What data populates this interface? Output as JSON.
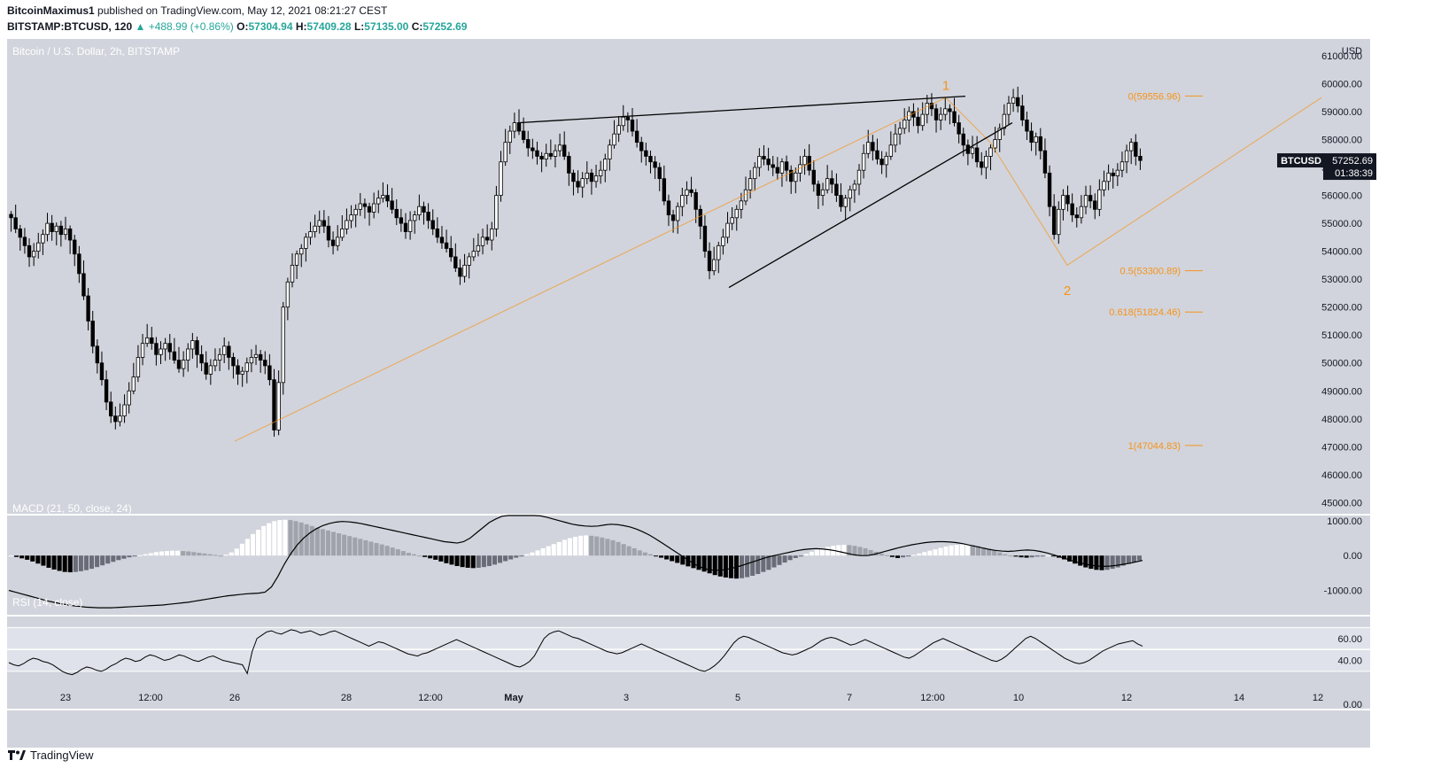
{
  "header": {
    "author": "BitcoinMaximus1",
    "published_text": "published on TradingView.com, May 12, 2021 08:21:27 CEST",
    "symbol": "BITSTAMP:BTCUSD, 120",
    "change": "+488.99 (+0.86%)",
    "open_label": "O:",
    "open": "57304.94",
    "high_label": "H:",
    "high": "57409.28",
    "low_label": "L:",
    "low": "57135.00",
    "close_label": "C:",
    "close": "57252.69"
  },
  "footer": {
    "brand": "TradingView"
  },
  "colors": {
    "panel_bg": "#d1d4dc",
    "candle": "#000000",
    "wave": "#f7931a",
    "annotation": "#f7931a",
    "price_tag_bg": "#131722"
  },
  "chart_data": [
    {
      "type": "candlestick",
      "title": "Bitcoin / U.S. Dollar, 2h, BITSTAMP",
      "currency_label": "USD",
      "ylim": [
        44600,
        61600
      ],
      "y_ticks": [
        "61000.00",
        "60000.00",
        "59000.00",
        "58000.00",
        "57000.00",
        "56000.00",
        "55000.00",
        "54000.00",
        "53000.00",
        "52000.00",
        "51000.00",
        "50000.00",
        "49000.00",
        "48000.00",
        "47000.00",
        "46000.00",
        "45000.00"
      ],
      "x_ticks": [
        "23",
        "12:00",
        "26",
        "28",
        "12:00",
        "May",
        "3",
        "5",
        "7",
        "12:00",
        "10",
        "12",
        "14",
        "12"
      ],
      "last_price": {
        "label": "BTCUSD",
        "value": "57252.69",
        "countdown": "01:38:39"
      },
      "fib_levels": [
        {
          "label": "0(59556.96)",
          "value": 59556.96
        },
        {
          "label": "0.5(53300.89)",
          "value": 53300.89
        },
        {
          "label": "0.618(51824.46)",
          "value": 51824.46
        },
        {
          "label": "1(47044.83)",
          "value": 47044.83
        }
      ],
      "wave_labels": [
        {
          "label": "1",
          "value": 59900
        },
        {
          "label": "2",
          "value": 53000
        }
      ],
      "wave_path": [
        [
          0.0,
          47200
        ],
        [
          0.51,
          59500
        ],
        [
          0.57,
          57900
        ],
        [
          0.66,
          53500
        ],
        [
          0.8,
          59500
        ]
      ],
      "wedge_top": [
        [
          0.0,
          58600
        ],
        [
          1.0,
          59550
        ]
      ],
      "wedge_bottom": [
        [
          0.0,
          52700
        ],
        [
          1.0,
          58600
        ]
      ],
      "close_path": [
        55200,
        54800,
        54500,
        54200,
        53800,
        54000,
        54300,
        54600,
        55000,
        54700,
        54900,
        54600,
        54800,
        54400,
        53900,
        53200,
        52400,
        51500,
        50600,
        50000,
        49400,
        48600,
        48100,
        47900,
        48100,
        48500,
        49000,
        49500,
        50200,
        50700,
        50900,
        50700,
        50300,
        50500,
        50700,
        50400,
        50100,
        49800,
        50100,
        50500,
        50800,
        50300,
        50000,
        49600,
        49900,
        50100,
        50300,
        50600,
        50200,
        49900,
        49600,
        49700,
        50000,
        50200,
        50300,
        50100,
        49900,
        49400,
        47600,
        49300,
        52000,
        52900,
        53500,
        53900,
        54100,
        54500,
        54700,
        54900,
        55100,
        54900,
        54400,
        54200,
        54500,
        54800,
        55100,
        55300,
        55500,
        55700,
        55600,
        55400,
        55700,
        55900,
        56000,
        55800,
        55500,
        55200,
        55000,
        54700,
        55100,
        55300,
        55600,
        55400,
        55100,
        54800,
        54500,
        54300,
        54100,
        53800,
        53400,
        53100,
        53500,
        53800,
        54000,
        54200,
        54500,
        54400,
        54800,
        56000,
        57200,
        57900,
        58300,
        58600,
        58300,
        58000,
        57700,
        57600,
        57400,
        57300,
        57500,
        57400,
        57600,
        57800,
        57400,
        56800,
        56500,
        56300,
        56600,
        56800,
        56500,
        56700,
        56900,
        57300,
        57800,
        58200,
        58500,
        58800,
        58700,
        58300,
        57900,
        57600,
        57400,
        57200,
        57000,
        56600,
        55800,
        55300,
        55100,
        55600,
        56000,
        56200,
        56100,
        55500,
        54900,
        54000,
        53300,
        53700,
        54200,
        54500,
        55000,
        55200,
        55500,
        55800,
        56200,
        56600,
        57000,
        57400,
        57300,
        57100,
        57000,
        56800,
        57200,
        56900,
        56500,
        56800,
        57100,
        57400,
        56900,
        56400,
        56000,
        56200,
        56600,
        56400,
        56000,
        55600,
        55900,
        56200,
        56400,
        56900,
        57500,
        57900,
        57600,
        57300,
        57100,
        57400,
        57800,
        58200,
        58400,
        58700,
        59000,
        58800,
        58500,
        58900,
        59300,
        59100,
        58700,
        58900,
        59100,
        59000,
        58600,
        58200,
        57800,
        57500,
        57700,
        57200,
        57000,
        57400,
        57700,
        58000,
        58400,
        58900,
        59300,
        59500,
        59200,
        58700,
        58300,
        57900,
        58100,
        57600,
        56800,
        55600,
        54600,
        55500,
        56000,
        55700,
        55300,
        55200,
        55600,
        56000,
        55800,
        55500,
        56200,
        56500,
        56800,
        56700,
        56900,
        57200,
        57600,
        57900,
        57400,
        57250
      ],
      "charts_ids": "price"
    },
    {
      "type": "bar_line",
      "title": "MACD (21, 50, close, 24)",
      "y_ticks": [
        "1000.00",
        "0.00",
        "-1000.00"
      ],
      "ylim": [
        -1700,
        1150
      ],
      "histogram": [
        0,
        -40,
        -80,
        -120,
        -170,
        -230,
        -290,
        -350,
        -400,
        -440,
        -470,
        -480,
        -470,
        -450,
        -420,
        -380,
        -330,
        -280,
        -230,
        -180,
        -130,
        -90,
        -50,
        -20,
        10,
        40,
        70,
        100,
        120,
        130,
        140,
        140,
        130,
        120,
        100,
        80,
        60,
        40,
        20,
        0,
        30,
        90,
        200,
        340,
        480,
        620,
        740,
        850,
        930,
        990,
        1020,
        1030,
        1020,
        990,
        950,
        900,
        850,
        800,
        760,
        720,
        680,
        640,
        600,
        560,
        520,
        480,
        440,
        400,
        360,
        320,
        280,
        230,
        180,
        130,
        80,
        40,
        0,
        -40,
        -80,
        -120,
        -170,
        -220,
        -260,
        -300,
        -330,
        -350,
        -360,
        -350,
        -330,
        -300,
        -260,
        -210,
        -160,
        -110,
        -60,
        -10,
        40,
        90,
        150,
        210,
        270,
        330,
        390,
        450,
        500,
        540,
        570,
        580,
        570,
        550,
        520,
        480,
        440,
        390,
        330,
        270,
        210,
        150,
        90,
        40,
        -10,
        -60,
        -110,
        -160,
        -210,
        -260,
        -310,
        -360,
        -410,
        -460,
        -510,
        -560,
        -600,
        -630,
        -650,
        -660,
        -650,
        -620,
        -580,
        -530,
        -470,
        -410,
        -340,
        -270,
        -200,
        -130,
        -70,
        -10,
        50,
        110,
        160,
        210,
        250,
        280,
        300,
        310,
        300,
        280,
        250,
        210,
        160,
        110,
        60,
        10,
        -40,
        -70,
        -50,
        -20,
        20,
        60,
        100,
        140,
        180,
        220,
        260,
        290,
        310,
        320,
        320,
        300,
        270,
        230,
        190,
        140,
        90,
        40,
        0,
        -30,
        -50,
        -60,
        -50,
        -30,
        -10,
        0,
        -20,
        -60,
        -110,
        -170,
        -230,
        -290,
        -340,
        -380,
        -410,
        -420,
        -410,
        -380,
        -340,
        -290,
        -240,
        -190,
        -140
      ],
      "macd_line": [
        -1000,
        -1050,
        -1100,
        -1150,
        -1200,
        -1250,
        -1300,
        -1340,
        -1380,
        -1410,
        -1440,
        -1460,
        -1480,
        -1490,
        -1500,
        -1500,
        -1500,
        -1490,
        -1480,
        -1470,
        -1460,
        -1450,
        -1440,
        -1430,
        -1420,
        -1400,
        -1380,
        -1360,
        -1340,
        -1310,
        -1280,
        -1250,
        -1220,
        -1190,
        -1160,
        -1140,
        -1120,
        -1100,
        -1090,
        -1080,
        -1050,
        -900,
        -600,
        -250,
        50,
        300,
        500,
        650,
        770,
        860,
        920,
        960,
        980,
        970,
        950,
        920,
        880,
        840,
        800,
        760,
        720,
        680,
        640,
        600,
        560,
        520,
        480,
        440,
        400,
        380,
        360,
        400,
        500,
        650,
        800,
        950,
        1050,
        1130,
        1180,
        1200,
        1200,
        1190,
        1170,
        1140,
        1100,
        1050,
        1000,
        950,
        900,
        870,
        850,
        840,
        850,
        880,
        900,
        890,
        860,
        820,
        760,
        680,
        590,
        480,
        360,
        240,
        120,
        0,
        -120,
        -240,
        -330,
        -390,
        -420,
        -420,
        -400,
        -360,
        -310,
        -250,
        -190,
        -130,
        -70,
        -20,
        20,
        60,
        100,
        140,
        170,
        190,
        200,
        190,
        170,
        140,
        100,
        60,
        20,
        0,
        0,
        30,
        80,
        130,
        180,
        230,
        270,
        310,
        340,
        370,
        390,
        400,
        400,
        390,
        370,
        340,
        300,
        260,
        220,
        180,
        150,
        130,
        120,
        130,
        150,
        160,
        150,
        120,
        80,
        30,
        -30,
        -90,
        -150,
        -200,
        -240,
        -280,
        -300,
        -310,
        -300,
        -280,
        -250,
        -220,
        -180,
        -140
      ],
      "charts_ids": "macd"
    },
    {
      "type": "line",
      "title": "RSI (14, close)",
      "y_ticks": [
        "60.00",
        "40.00",
        "0.00"
      ],
      "ylim": [
        -4,
        80
      ],
      "bands": [
        30,
        50,
        70
      ],
      "values": [
        38,
        36,
        35,
        37,
        40,
        42,
        41,
        39,
        38,
        36,
        33,
        30,
        28,
        27,
        29,
        32,
        34,
        33,
        31,
        30,
        32,
        35,
        37,
        40,
        42,
        41,
        39,
        40,
        43,
        45,
        44,
        42,
        40,
        41,
        43,
        45,
        44,
        42,
        40,
        39,
        41,
        43,
        44,
        42,
        40,
        39,
        38,
        37,
        36,
        28,
        48,
        60,
        63,
        66,
        67,
        65,
        64,
        66,
        68,
        67,
        65,
        66,
        67,
        65,
        63,
        64,
        66,
        67,
        65,
        63,
        61,
        59,
        57,
        55,
        53,
        55,
        57,
        56,
        54,
        52,
        50,
        48,
        46,
        45,
        44,
        46,
        47,
        49,
        51,
        53,
        55,
        57,
        59,
        57,
        55,
        53,
        51,
        49,
        47,
        45,
        43,
        41,
        39,
        37,
        35,
        34,
        36,
        39,
        44,
        52,
        60,
        64,
        66,
        67,
        65,
        63,
        61,
        60,
        58,
        56,
        54,
        52,
        50,
        48,
        47,
        46,
        47,
        49,
        51,
        53,
        55,
        53,
        51,
        49,
        47,
        45,
        43,
        41,
        39,
        37,
        35,
        33,
        31,
        30,
        32,
        35,
        39,
        44,
        50,
        56,
        60,
        62,
        61,
        59,
        57,
        55,
        53,
        51,
        49,
        47,
        46,
        45,
        46,
        48,
        50,
        52,
        55,
        58,
        60,
        61,
        60,
        58,
        56,
        54,
        55,
        57,
        59,
        57,
        55,
        53,
        51,
        49,
        47,
        45,
        43,
        42,
        44,
        47,
        50,
        53,
        56,
        58,
        60,
        58,
        56,
        54,
        52,
        50,
        48,
        46,
        44,
        42,
        40,
        39,
        41,
        44,
        48,
        52,
        56,
        60,
        62,
        60,
        57,
        54,
        51,
        48,
        45,
        42,
        40,
        38,
        37,
        38,
        40,
        43,
        46,
        49,
        51,
        53,
        55,
        56,
        57,
        58,
        55,
        53
      ],
      "charts_ids": "rsi"
    }
  ]
}
